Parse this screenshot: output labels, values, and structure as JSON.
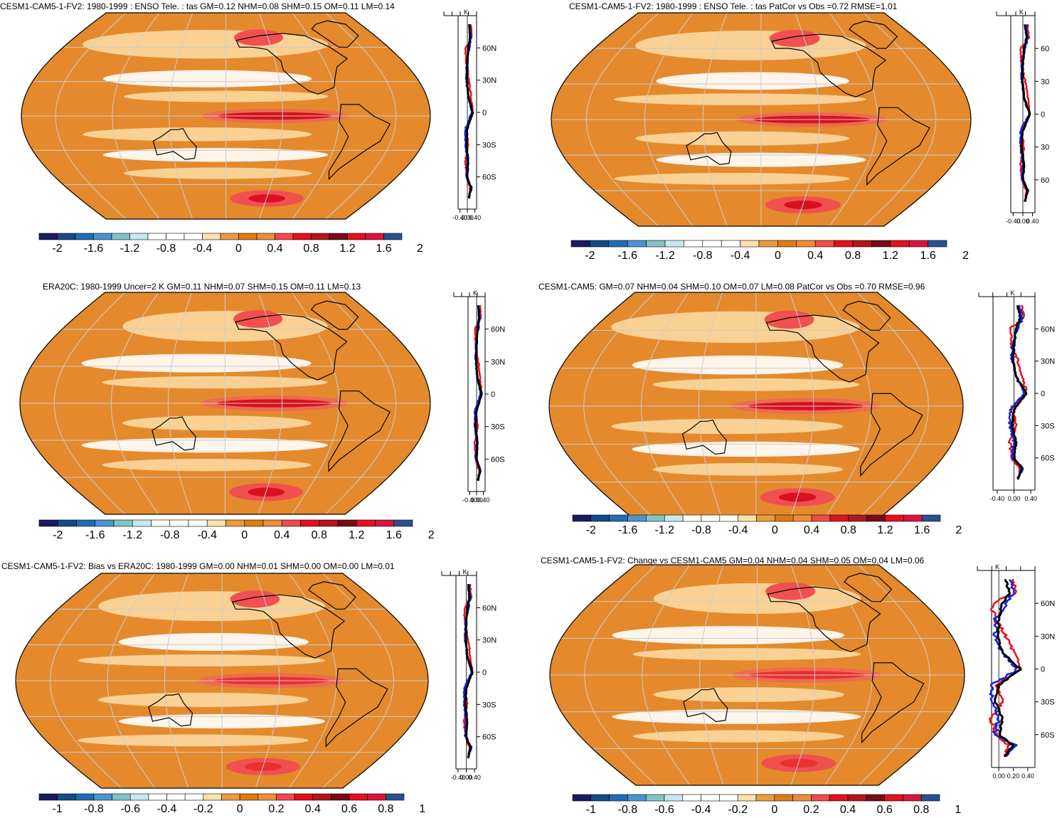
{
  "colors": {
    "palette": [
      "#1a1a60",
      "#134a8a",
      "#1f6db5",
      "#4a95d1",
      "#7fc3c8",
      "#c6e9f0",
      "#ffffff",
      "#ffffff",
      "#fde1ad",
      "#ee9a3e",
      "#e07a14",
      "#f08c3a",
      "#f24a4a",
      "#e60f1e",
      "#b5141c",
      "#7a0a14",
      "#e60f1e",
      "#dc143c",
      "#d01c2a",
      "#2a5090"
    ],
    "ocean_orange": "#e48a2d",
    "light_orange": "#fbd8a0",
    "red": "#e83030",
    "deep_red": "#d81020",
    "coast": "#000000",
    "grid": "#cccccc",
    "model_line": "#000000",
    "obs_red": "#e8101a",
    "obs_blue": "#1022e0"
  },
  "panels": [
    {
      "id": "p1",
      "title": "CESM1-CAM5-1-FV2: 1980-1999 : ENSO Tele. : tas GM=0.12 NHM=0.08 SHM=0.15 OM=0.11 LM=0.14",
      "colorbar_labels": [
        "-2",
        "-1.6",
        "-1.2",
        "-0.8",
        "-0.4",
        "0",
        "0.4",
        "0.8",
        "1.2",
        "1.6",
        "2"
      ],
      "zonal_ticks": [
        "-0.40",
        "0.00",
        "0.40"
      ],
      "lat_labels": [
        "60N",
        "30N",
        "0",
        "30S",
        "60S"
      ],
      "unit": "K"
    },
    {
      "id": "p2",
      "title": "CESM1-CAM5-1-FV2: 1980-1999 : ENSO Tele. : tas PatCor vs Obs =0.72 RMSE=1.01",
      "colorbar_labels": [
        "-2",
        "-1.6",
        "-1.2",
        "-0.8",
        "-0.4",
        "0",
        "0.4",
        "0.8",
        "1.2",
        "1.6",
        "2"
      ],
      "zonal_ticks": [
        "-0.40",
        "0.00",
        "0.40"
      ],
      "lat_labels": [
        "60",
        "30",
        "0",
        "30",
        "60"
      ],
      "unit": "K"
    },
    {
      "id": "p3",
      "title": "ERA20C: 1980-1999 Uncer=2 K GM=0.11 NHM=0.07 SHM=0.15 OM=0.11 LM=0.13",
      "colorbar_labels": [
        "-2",
        "-1.6",
        "-1.2",
        "-0.8",
        "-0.4",
        "0",
        "0.4",
        "0.8",
        "1.2",
        "1.6",
        "2"
      ],
      "zonal_ticks": [
        "-0.40",
        "0.00",
        "0.40"
      ],
      "lat_labels": [
        "60N",
        "30N",
        "0",
        "30S",
        "60S"
      ],
      "unit": "K"
    },
    {
      "id": "p4",
      "title": "CESM1-CAM5: GM=0.07 NHM=0.04 SHM=0.10 OM=0.07 LM=0.08 PatCor vs Obs =0.70 RMSE=0.96",
      "colorbar_labels": [
        "-2",
        "-1.6",
        "-1.2",
        "-0.8",
        "-0.4",
        "0",
        "0.4",
        "0.8",
        "1.2",
        "1.6",
        "2"
      ],
      "zonal_ticks": [
        "-0.40",
        "0.00",
        "0.40"
      ],
      "lat_labels": [
        "60N",
        "30N",
        "0",
        "30S",
        "60S"
      ],
      "unit": "K"
    },
    {
      "id": "p5",
      "title": "CESM1-CAM5-1-FV2: Bias vs ERA20C: 1980-1999 GM=0.00 NHM=0.01 SHM=0.00 OM=0.00 LM=0.01",
      "colorbar_labels": [
        "-1",
        "-0.8",
        "-0.6",
        "-0.4",
        "-0.2",
        "0",
        "0.2",
        "0.4",
        "0.6",
        "0.8",
        "1"
      ],
      "zonal_ticks": [
        "-0.40",
        "0.00",
        "0.40"
      ],
      "lat_labels": [
        "60N",
        "30N",
        "0",
        "30S",
        "60S"
      ],
      "unit": "K"
    },
    {
      "id": "p6",
      "title": "CESM1-CAM5-1-FV2: Change vs CESM1-CAM5 GM=0.04 NHM=0.04 SHM=0.05 OM=0.04 LM=0.06",
      "colorbar_labels": [
        "-1",
        "-0.8",
        "-0.6",
        "-0.4",
        "-0.2",
        "0",
        "0.2",
        "0.4",
        "0.6",
        "0.8",
        "1"
      ],
      "zonal_ticks": [
        "0.00",
        "0.20",
        "0.40"
      ],
      "lat_labels": [
        "60N",
        "30N",
        "0",
        "30S",
        "60S"
      ],
      "unit": "K"
    }
  ],
  "chart_data": [
    {
      "type": "heatmap",
      "title": "CESM1-CAM5-1-FV2: 1980-1999 : ENSO Tele. : tas GM=0.12 NHM=0.08 SHM=0.15 OM=0.11 LM=0.14",
      "colorbar_range": [
        -2,
        2
      ],
      "zonal_mean": {
        "lat": [
          80,
          70,
          60,
          45,
          30,
          15,
          0,
          -15,
          -30,
          -45,
          -60,
          -70,
          -78
        ],
        "model": [
          0.1,
          0.15,
          0.05,
          0.0,
          -0.02,
          0.05,
          0.3,
          0.0,
          -0.05,
          0.05,
          0.0,
          0.2,
          0.1
        ],
        "obs_red": [
          0.2,
          0.25,
          -0.1,
          -0.05,
          0.1,
          0.2,
          0.3,
          -0.05,
          0.05,
          -0.1,
          -0.05,
          0.15,
          0.1
        ],
        "obs_blue": [
          0.15,
          0.2,
          0.1,
          -0.05,
          -0.05,
          0.05,
          0.25,
          -0.1,
          -0.1,
          0.0,
          -0.05,
          0.25,
          0.1
        ]
      }
    },
    {
      "type": "heatmap",
      "title": "CESM1-CAM5-1-FV2: 1980-1999 : ENSO Tele. : tas PatCor vs Obs =0.72 RMSE=1.01",
      "colorbar_range": [
        -2,
        2
      ]
    },
    {
      "type": "heatmap",
      "title": "ERA20C: 1980-1999 Uncer=2 K GM=0.11 NHM=0.07 SHM=0.15 OM=0.11 LM=0.13",
      "colorbar_range": [
        -2,
        2
      ]
    },
    {
      "type": "heatmap",
      "title": "CESM1-CAM5: GM=0.07 NHM=0.04 SHM=0.10 OM=0.07 LM=0.08 PatCor vs Obs =0.70 RMSE=0.96",
      "colorbar_range": [
        -2,
        2
      ]
    },
    {
      "type": "heatmap",
      "title": "CESM1-CAM5-1-FV2: Bias vs ERA20C: 1980-1999 GM=0.00 NHM=0.01 SHM=0.00 OM=0.00 LM=0.01",
      "colorbar_range": [
        -1,
        1
      ]
    },
    {
      "type": "heatmap",
      "title": "CESM1-CAM5-1-FV2: Change vs CESM1-CAM5 GM=0.04 NHM=0.04 SHM=0.05 OM=0.04 LM=0.06",
      "colorbar_range": [
        -1,
        1
      ]
    }
  ]
}
